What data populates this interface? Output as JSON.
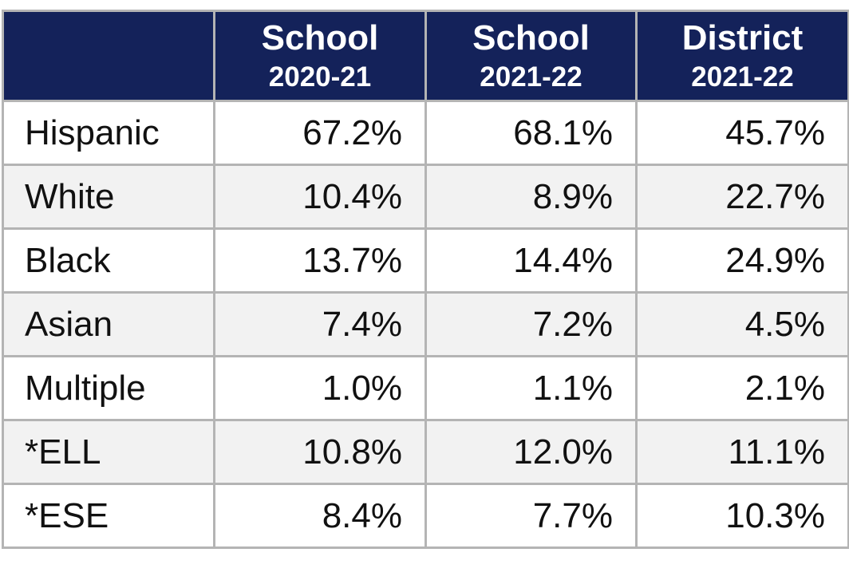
{
  "table": {
    "header": [
      {
        "title": "School",
        "year": "2020-21"
      },
      {
        "title": "School",
        "year": "2021-22"
      },
      {
        "title": "District",
        "year": "2021-22"
      }
    ],
    "rows": [
      [
        "Hispanic",
        "67.2%",
        "68.1%",
        "45.7%"
      ],
      [
        "White",
        "10.4%",
        "8.9%",
        "22.7%"
      ],
      [
        "Black",
        "13.7%",
        "14.4%",
        "24.9%"
      ],
      [
        "Asian",
        "7.4%",
        "7.2%",
        "4.5%"
      ],
      [
        "Multiple",
        "1.0%",
        "1.1%",
        "2.1%"
      ],
      [
        "*ELL",
        "10.8%",
        "12.0%",
        "11.1%"
      ],
      [
        "*ESE",
        "8.4%",
        "7.7%",
        "10.3%"
      ]
    ]
  }
}
